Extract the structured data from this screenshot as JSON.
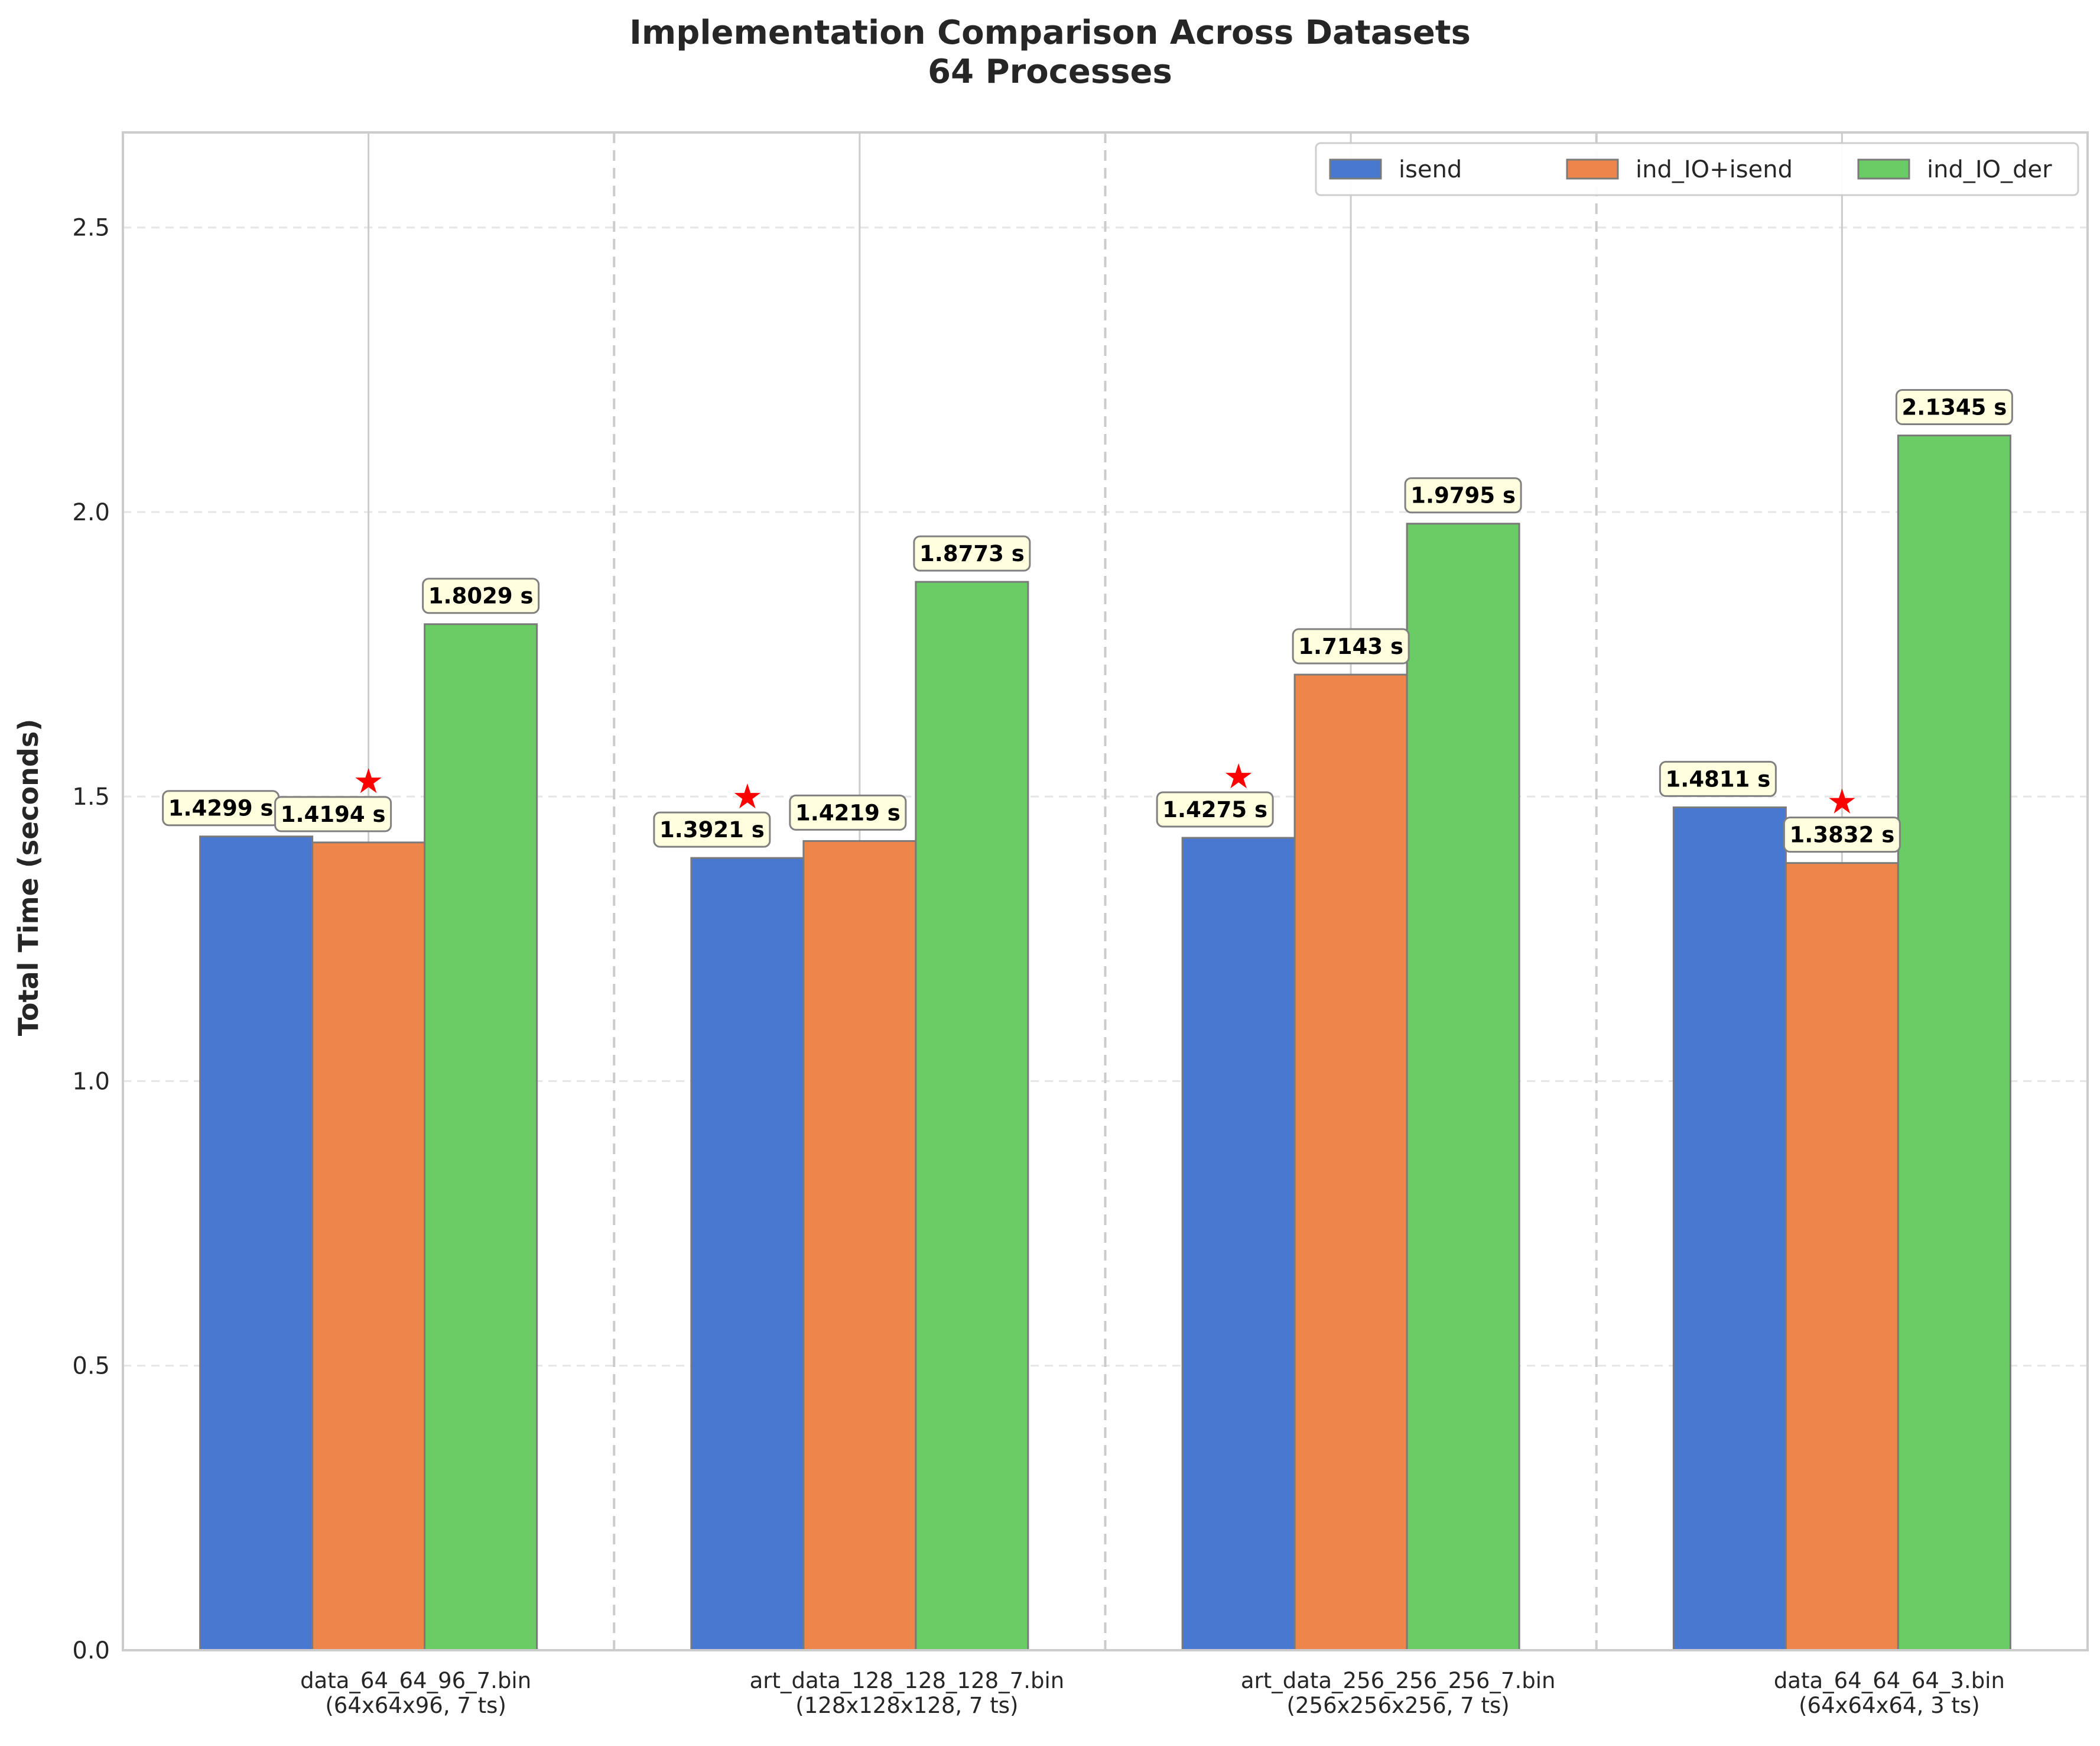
{
  "chart_data": {
    "type": "bar",
    "title": "Implementation Comparison Across Datasets",
    "subtitle": "64 Processes",
    "xlabel": "",
    "ylabel": "Total Time (seconds)",
    "ylim": [
      0,
      2.667
    ],
    "yticks": [
      "0.0",
      "0.5",
      "1.0",
      "1.5",
      "2.0",
      "2.5"
    ],
    "grid": true,
    "legend_position": "top-right",
    "categories": [
      [
        "data_64_64_96_7.bin",
        "(64x64x96, 7 ts)"
      ],
      [
        "art_data_128_128_128_7.bin",
        "(128x128x128, 7 ts)"
      ],
      [
        "art_data_256_256_256_7.bin",
        "(256x256x256, 7 ts)"
      ],
      [
        "data_64_64_64_3.bin",
        "(64x64x64, 3 ts)"
      ]
    ],
    "series": [
      {
        "name": "isend",
        "color": "#4878d0",
        "values": [
          1.4299,
          1.3921,
          1.4275,
          1.4811
        ]
      },
      {
        "name": "ind_IO+isend",
        "color": "#ee854a",
        "values": [
          1.4194,
          1.4219,
          1.7143,
          1.3832
        ]
      },
      {
        "name": "ind_IO_der",
        "color": "#6acc64",
        "values": [
          1.8029,
          1.8773,
          1.9795,
          2.1345
        ]
      }
    ],
    "data_labels": [
      [
        "1.4299 s",
        "1.4194 s",
        "1.8029 s"
      ],
      [
        "1.3921 s",
        "1.4219 s",
        "1.8773 s"
      ],
      [
        "1.4275 s",
        "1.7143 s",
        "1.9795 s"
      ],
      [
        "1.4811 s",
        "1.3832 s",
        "2.1345 s"
      ]
    ],
    "best_marker": {
      "symbol": "★",
      "color": "#ff0000",
      "series_index_per_category": [
        1,
        0,
        0,
        1
      ]
    },
    "label_box_color": "#ffffe0"
  }
}
